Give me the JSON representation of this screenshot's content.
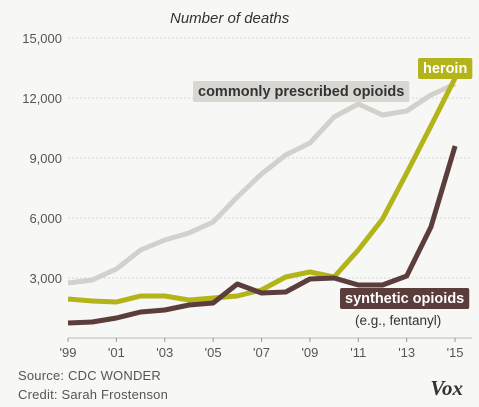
{
  "chart_data": {
    "type": "line",
    "title": "Number of deaths",
    "x": [
      1999,
      2000,
      2001,
      2002,
      2003,
      2004,
      2005,
      2006,
      2007,
      2008,
      2009,
      2010,
      2011,
      2012,
      2013,
      2014,
      2015
    ],
    "x_tick_labels": [
      "'99",
      "'01",
      "'03",
      "'05",
      "'07",
      "'09",
      "'11",
      "'13",
      "'15"
    ],
    "x_tick_values": [
      1999,
      2001,
      2003,
      2005,
      2007,
      2009,
      2011,
      2013,
      2015
    ],
    "y_ticks": [
      3000,
      6000,
      9000,
      12000,
      15000
    ],
    "y_tick_labels": [
      "3,000",
      "6,000",
      "9,000",
      "12,000",
      "15,000"
    ],
    "ylim": [
      0,
      15000
    ],
    "xlim": [
      1999,
      2015.7
    ],
    "grid": true,
    "series": [
      {
        "name": "commonly prescribed opioids",
        "color": "#d3d1cc",
        "values": [
          2750,
          2900,
          3450,
          4400,
          4900,
          5250,
          5800,
          7050,
          8200,
          9150,
          9750,
          11050,
          11700,
          11150,
          11350,
          12150,
          12700
        ]
      },
      {
        "name": "heroin",
        "color": "#b3b41a",
        "values": [
          1950,
          1850,
          1800,
          2100,
          2100,
          1900,
          2000,
          2100,
          2400,
          3050,
          3300,
          3050,
          4400,
          5950,
          8250,
          10600,
          13000
        ]
      },
      {
        "name": "synthetic opioids",
        "sublabel": "(e.g., fentanyl)",
        "color": "#5b3d3b",
        "values": [
          750,
          800,
          1000,
          1300,
          1400,
          1650,
          1750,
          2700,
          2250,
          2300,
          2950,
          3000,
          2650,
          2650,
          3100,
          5550,
          9600
        ]
      }
    ]
  },
  "footer": {
    "source": "Source: CDC WONDER",
    "credit": "Credit: Sarah Frostenson",
    "logo": "Vox"
  }
}
